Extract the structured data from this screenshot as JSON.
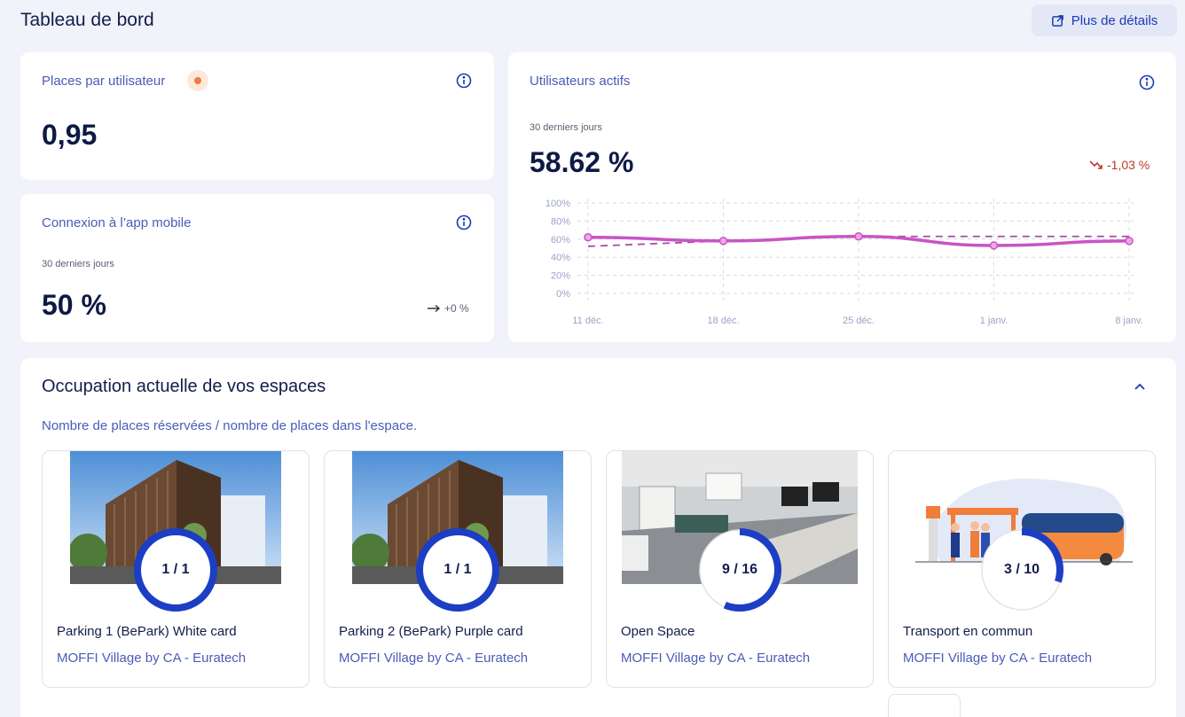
{
  "header": {
    "title": "Tableau de bord",
    "details_label": "Plus de détails"
  },
  "places_card": {
    "title": "Places par utilisateur",
    "value": "0,95"
  },
  "mobile_card": {
    "title": "Connexion à l’app mobile",
    "period": "30 derniers jours",
    "value": "50 %",
    "trend": "+0 %",
    "trend_icon": "arrow-right-icon"
  },
  "active_card": {
    "title": "Utilisateurs actifs",
    "period": "30 derniers jours",
    "value": "58.62 %",
    "trend": "-1,03 %",
    "trend_icon": "trend-down-icon"
  },
  "chart_data": {
    "type": "line",
    "x": [
      "11 déc.",
      "18 déc.",
      "25 déc.",
      "1 janv.",
      "8 janv."
    ],
    "y_ticks": [
      "100%",
      "80%",
      "60%",
      "40%",
      "20%",
      "0%"
    ],
    "ylim": [
      0,
      100
    ],
    "series": [
      {
        "values": [
          62,
          58,
          63,
          53,
          58
        ],
        "style": "solid",
        "color": "#c854c4"
      },
      {
        "values": [
          52,
          58,
          63,
          63,
          63
        ],
        "style": "dashed",
        "color": "#a84aa8"
      }
    ],
    "grid": true
  },
  "occupation": {
    "title": "Occupation actuelle de vos espaces",
    "subtitle": "Nombre de places réservées / nombre de places dans l'espace.",
    "spaces": [
      {
        "name": "Parking 1 (BePark) White card",
        "location": "MOFFI Village by CA - Euratech",
        "booked": 1,
        "total": 1,
        "label": "1 / 1",
        "image": "building"
      },
      {
        "name": "Parking 2 (BePark) Purple card",
        "location": "MOFFI Village by CA - Euratech",
        "booked": 1,
        "total": 1,
        "label": "1 / 1",
        "image": "building"
      },
      {
        "name": "Open Space",
        "location": "MOFFI Village by CA - Euratech",
        "booked": 9,
        "total": 16,
        "label": "9 / 16",
        "image": "office"
      },
      {
        "name": "Transport en commun",
        "location": "MOFFI Village by CA - Euratech",
        "booked": 3,
        "total": 10,
        "label": "3 / 10",
        "image": "bus"
      }
    ]
  },
  "colors": {
    "accent": "#1d3bb5",
    "ring": "#1b3ec4",
    "trend_down": "#c0392b"
  }
}
